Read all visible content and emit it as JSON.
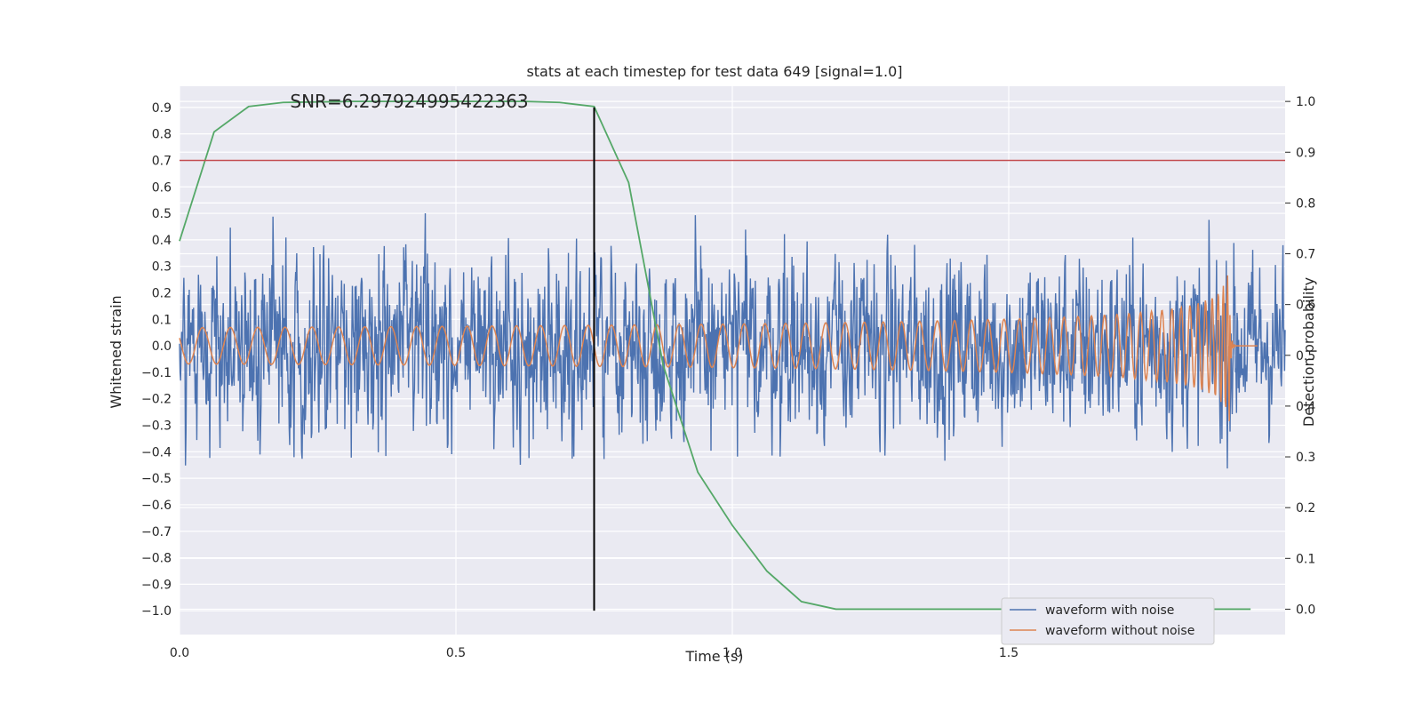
{
  "chart_data": {
    "type": "line",
    "title": "stats at each timestep for test data 649 [signal=1.0]",
    "xlabel": "Time (s)",
    "ylabel_left": "Whitened strain",
    "ylabel_right": "Detection probability",
    "xlim": [
      0.0,
      2.0
    ],
    "ylim_left": [
      -1.09,
      0.98
    ],
    "ylim_right": [
      -0.05,
      1.03
    ],
    "x_ticks": [
      0.0,
      0.5,
      1.0,
      1.5
    ],
    "x_tick_labels": [
      "0.0",
      "0.5",
      "1.0",
      "1.5"
    ],
    "y_left_ticks": [
      -1.0,
      -0.9,
      -0.8,
      -0.7,
      -0.6,
      -0.5,
      -0.4,
      -0.3,
      -0.2,
      -0.1,
      0.0,
      0.1,
      0.2,
      0.3,
      0.4,
      0.5,
      0.6,
      0.7,
      0.8,
      0.9
    ],
    "y_left_tick_labels": [
      "−1.0",
      "−0.9",
      "−0.8",
      "−0.7",
      "−0.6",
      "−0.5",
      "−0.4",
      "−0.3",
      "−0.2",
      "−0.1",
      "0.0",
      "0.1",
      "0.2",
      "0.3",
      "0.4",
      "0.5",
      "0.6",
      "0.7",
      "0.8",
      "0.9"
    ],
    "y_right_ticks": [
      0.0,
      0.1,
      0.2,
      0.3,
      0.4,
      0.5,
      0.6,
      0.7,
      0.8,
      0.9,
      1.0
    ],
    "y_right_tick_labels": [
      "0.0",
      "0.1",
      "0.2",
      "0.3",
      "0.4",
      "0.5",
      "0.6",
      "0.7",
      "0.8",
      "0.9",
      "1.0"
    ],
    "grid": true,
    "legend_placement": "lower-right",
    "annotation": "SNR=6.297924995422363",
    "annotation_x": 0.2,
    "annotation_y": 0.9,
    "threshold_line": {
      "axis": "left",
      "y": 0.7,
      "color": "#c44e52"
    },
    "marker_line": {
      "x": 0.75,
      "y_range": [
        -1.0,
        0.9
      ],
      "color": "#000000"
    },
    "series": [
      {
        "name": "waveform with noise",
        "axis": "left",
        "color": "#4c72b0",
        "kind": "noise",
        "x_range": [
          0.0,
          2.0
        ],
        "samples": 2048,
        "approx_range": [
          -1.0,
          0.88
        ]
      },
      {
        "name": "waveform without noise",
        "axis": "left",
        "color": "#dd8452",
        "kind": "chirp",
        "x_range": [
          0.0,
          1.95
        ],
        "merger_time": 1.9,
        "peak_amplitude": 0.32
      },
      {
        "name": "",
        "axis": "right",
        "color": "#55a868",
        "x": [
          0.0,
          0.0625,
          0.125,
          0.1875,
          0.25,
          0.3125,
          0.375,
          0.4375,
          0.5,
          0.5625,
          0.625,
          0.6875,
          0.75,
          0.8125,
          0.875,
          0.9375,
          1.0,
          1.0625,
          1.125,
          1.1875,
          1.25,
          1.3125,
          1.375,
          1.4375,
          1.5,
          1.5625,
          1.625,
          1.6875,
          1.75,
          1.8125,
          1.875,
          1.9375
        ],
        "values": [
          0.725,
          0.94,
          0.99,
          0.998,
          0.999,
          1.0,
          1.0,
          1.0,
          1.0,
          1.0,
          1.0,
          0.998,
          0.99,
          0.84,
          0.48,
          0.27,
          0.165,
          0.075,
          0.015,
          0.0,
          0.0,
          0.0,
          0.0,
          0.0,
          0.0,
          0.0,
          0.0,
          0.0,
          0.0,
          0.0,
          0.0,
          0.0
        ]
      }
    ]
  }
}
